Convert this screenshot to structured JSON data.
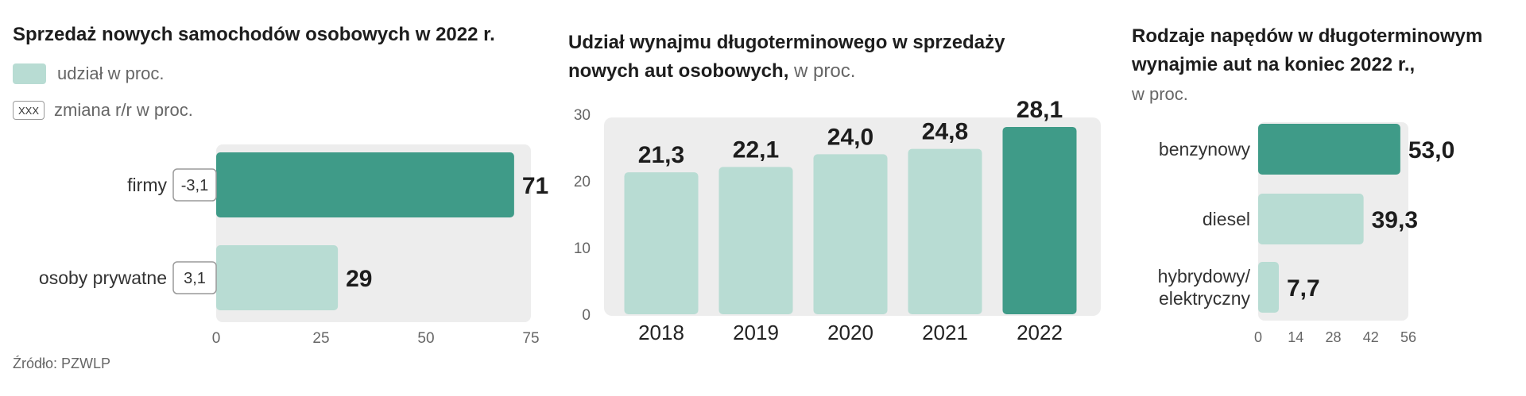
{
  "colors": {
    "light": "#b8dcd3",
    "dark": "#3f9b88",
    "bg": "#ededed",
    "axis": "#666666"
  },
  "chart_data": [
    {
      "type": "bar",
      "orientation": "horizontal",
      "title": "Sprzedaż nowych samochodów osobowych w 2022 r.",
      "legend": {
        "share": "udział w proc.",
        "change_box": "XXX",
        "change": "zmiana r/r w proc."
      },
      "categories": [
        "firmy",
        "osoby prywatne"
      ],
      "values": [
        71,
        29
      ],
      "value_labels": [
        "71",
        "29"
      ],
      "changes": [
        "-3,1",
        "3,1"
      ],
      "highlight": [
        true,
        false
      ],
      "xlim": [
        0,
        75
      ],
      "xticks": [
        "0",
        "25",
        "50",
        "75"
      ],
      "source": "Źródło: PZWLP"
    },
    {
      "type": "bar",
      "orientation": "vertical",
      "title_line1": "Udział wynajmu długoterminowego w sprzedaży",
      "title_line2": "nowych aut osobowych,",
      "title_unit": " w proc.",
      "categories": [
        "2018",
        "2019",
        "2020",
        "2021",
        "2022"
      ],
      "values": [
        21.3,
        22.1,
        24.0,
        24.8,
        28.1
      ],
      "value_labels": [
        "21,3",
        "22,1",
        "24,0",
        "24,8",
        "28,1"
      ],
      "highlight": [
        false,
        false,
        false,
        false,
        true
      ],
      "ylim": [
        0,
        30
      ],
      "yticks": [
        "0",
        "10",
        "20",
        "30"
      ]
    },
    {
      "type": "bar",
      "orientation": "horizontal",
      "title_line1": "Rodzaje napędów w długoterminowym",
      "title_line2": "wynajmie aut na koniec 2022 r.,",
      "title_unit": "w proc.",
      "categories": [
        [
          "benzynowy"
        ],
        [
          "diesel"
        ],
        [
          "hybrydowy/",
          "elektryczny"
        ]
      ],
      "values": [
        53.0,
        39.3,
        7.7
      ],
      "value_labels": [
        "53,0",
        "39,3",
        "7,7"
      ],
      "highlight": [
        true,
        false,
        false
      ],
      "xlim": [
        0,
        56
      ],
      "xticks": [
        "0",
        "14",
        "28",
        "42",
        "56"
      ]
    }
  ]
}
